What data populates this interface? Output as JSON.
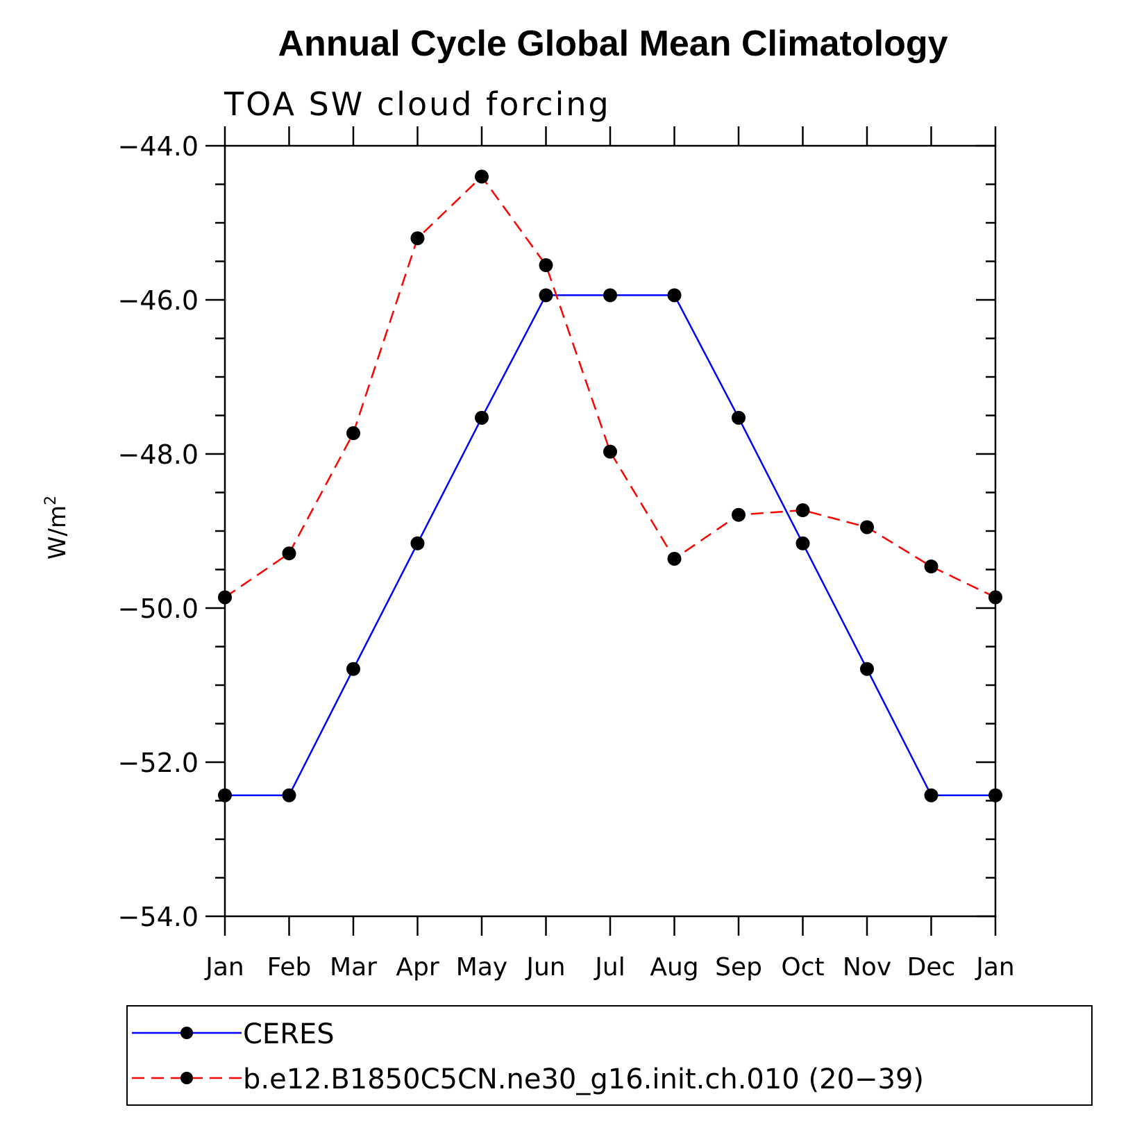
{
  "chart_data": {
    "type": "line",
    "title": "Annual Cycle Global Mean Climatology",
    "subtitle": "TOA SW cloud forcing",
    "ylabel": "W/m",
    "ylabel_sup": "2",
    "xlabel": "",
    "categories": [
      "Jan",
      "Feb",
      "Mar",
      "Apr",
      "May",
      "Jun",
      "Jul",
      "Aug",
      "Sep",
      "Oct",
      "Nov",
      "Dec",
      "Jan"
    ],
    "ylim": [
      -54.0,
      -44.0
    ],
    "yticks": [
      -54.0,
      -52.0,
      -50.0,
      -48.0,
      -46.0,
      -44.0
    ],
    "ytick_labels": [
      "−54.0",
      "−52.0",
      "−50.0",
      "−48.0",
      "−46.0",
      "−44.0"
    ],
    "grid": false,
    "legend_position": "bottom",
    "series": [
      {
        "name": "CERES",
        "color": "#0000ff",
        "line_style": "solid",
        "marker": "filled-circle",
        "values": [
          -52.43,
          -52.43,
          -50.79,
          -49.16,
          -47.53,
          -45.94,
          -45.94,
          -45.94,
          -47.53,
          -49.16,
          -50.79,
          -52.43,
          -52.43
        ]
      },
      {
        "name": "b.e12.B1850C5CN.ne30_g16.init.ch.010 (20−39)",
        "color": "#ff0000",
        "line_style": "dashed",
        "marker": "filled-circle",
        "values": [
          -49.86,
          -49.29,
          -47.73,
          -45.2,
          -44.4,
          -45.55,
          -47.97,
          -49.36,
          -48.79,
          -48.73,
          -48.95,
          -49.46,
          -49.86
        ]
      }
    ]
  }
}
